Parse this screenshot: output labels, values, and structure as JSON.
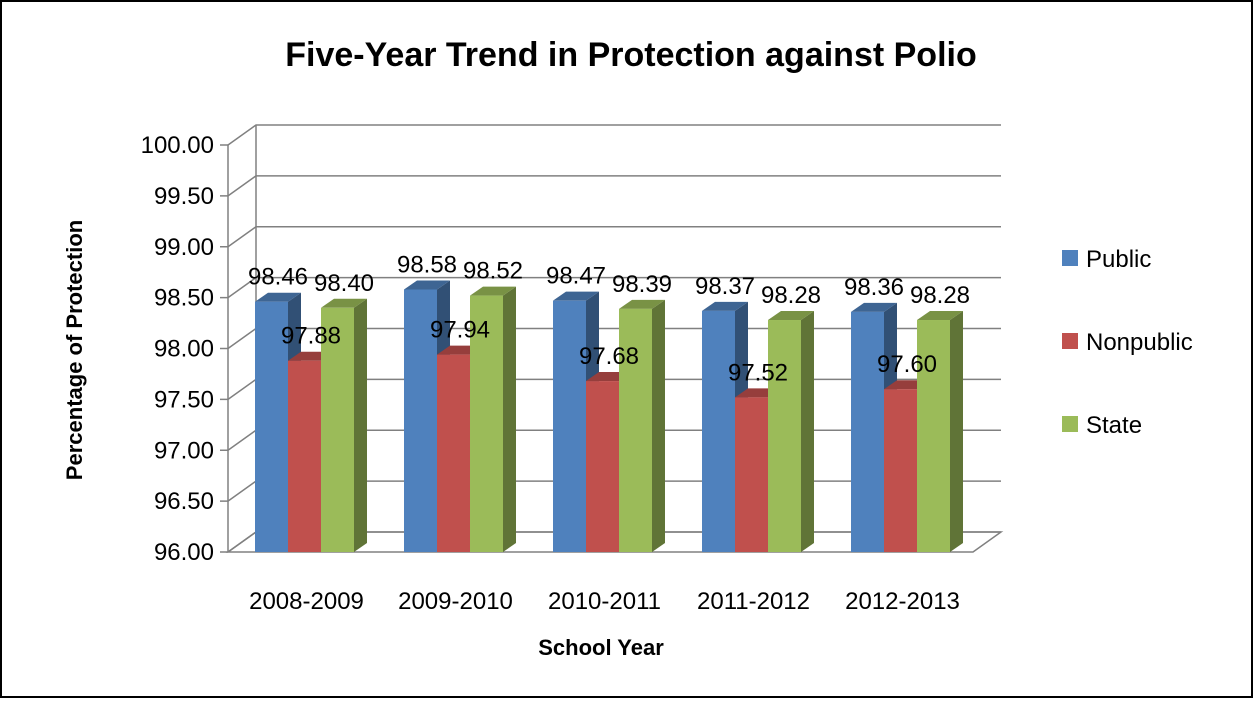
{
  "chart_data": {
    "type": "bar",
    "title": "Five-Year Trend in Protection against Polio",
    "xlabel": "School Year",
    "ylabel": "Percentage of Protection",
    "categories": [
      "2008-2009",
      "2009-2010",
      "2010-2011",
      "2011-2012",
      "2012-2013"
    ],
    "series": [
      {
        "name": "Public",
        "values": [
          98.46,
          98.58,
          98.47,
          98.37,
          98.36
        ],
        "labels": [
          "98.46",
          "98.58",
          "98.47",
          "98.37",
          "98.36"
        ],
        "color": "#4F81BD"
      },
      {
        "name": "Nonpublic",
        "values": [
          97.88,
          97.94,
          97.68,
          97.52,
          97.6
        ],
        "labels": [
          "97.88",
          "97.94",
          "97.68",
          "97.52",
          "97.60"
        ],
        "color": "#C0504D"
      },
      {
        "name": "State",
        "values": [
          98.4,
          98.52,
          98.39,
          98.28,
          98.28
        ],
        "labels": [
          "98.40",
          "98.52",
          "98.39",
          "98.28",
          "98.28"
        ],
        "color": "#9BBB59"
      }
    ],
    "ylim": [
      96.0,
      100.0
    ],
    "yticks": [
      "96.00",
      "96.50",
      "97.00",
      "97.50",
      "98.00",
      "98.50",
      "99.00",
      "99.50",
      "100.00"
    ],
    "grid": true,
    "legend_position": "right",
    "style": "3d-clustered-column"
  }
}
